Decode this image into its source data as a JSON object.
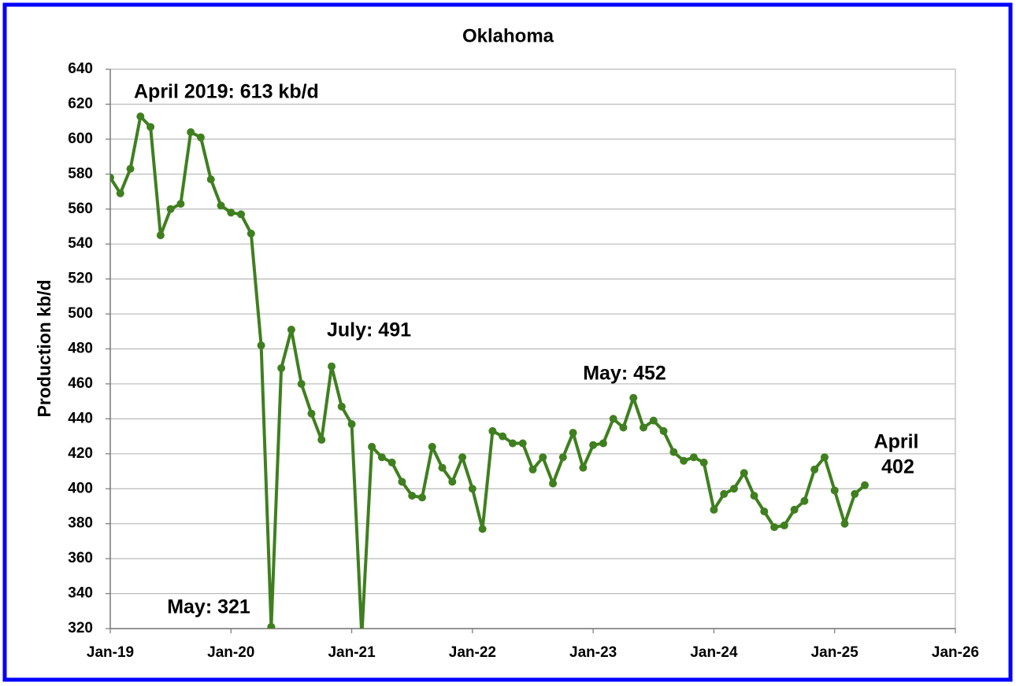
{
  "chart_data": {
    "type": "line",
    "title": "Oklahoma",
    "ylabel": "Production kb/d",
    "x": [
      "2019-01",
      "2019-02",
      "2019-03",
      "2019-04",
      "2019-05",
      "2019-06",
      "2019-07",
      "2019-08",
      "2019-09",
      "2019-10",
      "2019-11",
      "2019-12",
      "2020-01",
      "2020-02",
      "2020-03",
      "2020-04",
      "2020-05",
      "2020-06",
      "2020-07",
      "2020-08",
      "2020-09",
      "2020-10",
      "2020-11",
      "2020-12",
      "2021-01",
      "2021-02",
      "2021-03",
      "2021-04",
      "2021-05",
      "2021-06",
      "2021-07",
      "2021-08",
      "2021-09",
      "2021-10",
      "2021-11",
      "2021-12",
      "2022-01",
      "2022-02",
      "2022-03",
      "2022-04",
      "2022-05",
      "2022-06",
      "2022-07",
      "2022-08",
      "2022-09",
      "2022-10",
      "2022-11",
      "2022-12",
      "2023-01",
      "2023-02",
      "2023-03",
      "2023-04",
      "2023-05",
      "2023-06",
      "2023-07",
      "2023-08",
      "2023-09",
      "2023-10",
      "2023-11",
      "2023-12",
      "2024-01",
      "2024-02",
      "2024-03",
      "2024-04",
      "2024-05",
      "2024-06",
      "2024-07",
      "2024-08",
      "2024-09",
      "2024-10",
      "2024-11",
      "2024-12",
      "2025-01",
      "2025-02",
      "2025-03",
      "2025-04"
    ],
    "series": [
      {
        "name": "Oklahoma",
        "color": "#3f7f1f",
        "values": [
          578,
          569,
          583,
          613,
          607,
          545,
          560,
          563,
          604,
          601,
          577,
          562,
          558,
          557,
          546,
          482,
          321,
          469,
          491,
          460,
          443,
          428,
          470,
          447,
          437,
          316,
          424,
          418,
          415,
          404,
          396,
          395,
          424,
          412,
          404,
          418,
          400,
          377,
          433,
          430,
          426,
          426,
          411,
          418,
          403,
          418,
          432,
          412,
          425,
          426,
          440,
          435,
          452,
          435,
          439,
          433,
          421,
          416,
          418,
          415,
          388,
          397,
          400,
          409,
          396,
          387,
          378,
          379,
          388,
          393,
          411,
          418,
          399,
          380,
          397,
          402
        ]
      }
    ],
    "xlim": [
      "2019-01",
      "2026-01"
    ],
    "xticks": [
      {
        "value": "2019-01",
        "label": "Jan-19"
      },
      {
        "value": "2020-01",
        "label": "Jan-20"
      },
      {
        "value": "2021-01",
        "label": "Jan-21"
      },
      {
        "value": "2022-01",
        "label": "Jan-22"
      },
      {
        "value": "2023-01",
        "label": "Jan-23"
      },
      {
        "value": "2024-01",
        "label": "Jan-24"
      },
      {
        "value": "2025-01",
        "label": "Jan-25"
      },
      {
        "value": "2026-01",
        "label": "Jan-26"
      }
    ],
    "ylim": [
      320,
      640
    ],
    "yticks": [
      320,
      340,
      360,
      380,
      400,
      420,
      440,
      460,
      480,
      500,
      520,
      540,
      560,
      580,
      600,
      620,
      640
    ],
    "grid": true,
    "annotations": [
      "April 2019: 613 kb/d",
      "May: 321",
      "July: 491",
      "May: 452",
      "April",
      "402"
    ]
  }
}
